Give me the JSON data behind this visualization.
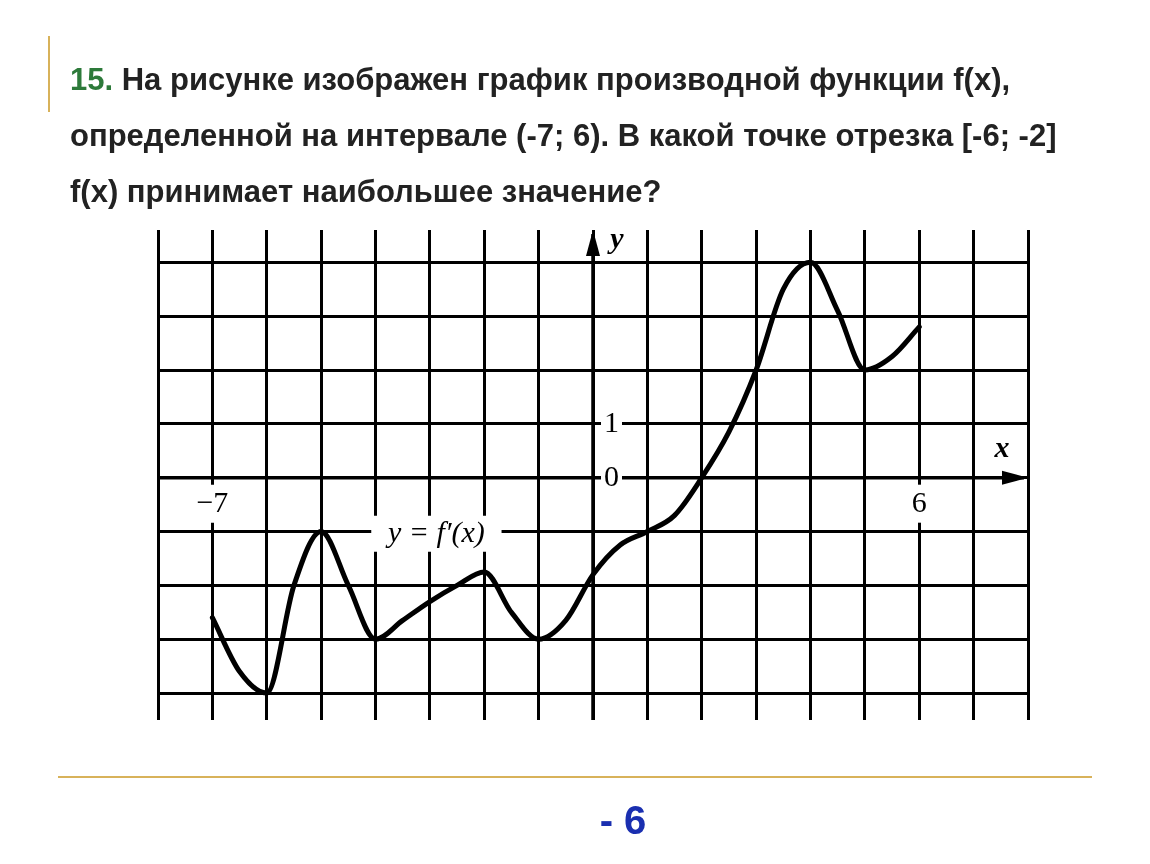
{
  "chart_data": {
    "type": "line",
    "title": "15. На рисунке изображен график производной функции f(x), определенной на интервале (-7; 6). В какой точке отрезка [-6; -2] f(x) принимает наибольшее значение?",
    "xlabel": "x",
    "ylabel": "y",
    "x": [
      -7,
      -6.5,
      -6,
      -5.5,
      -5,
      -4.5,
      -4,
      -3.5,
      -3,
      -2.5,
      -2,
      -1.5,
      -1,
      -0.5,
      0,
      0.5,
      1,
      1.5,
      2,
      2.5,
      3,
      3.5,
      4,
      4.5,
      5,
      5.5,
      6
    ],
    "series": [
      {
        "color": "#000000",
        "values": [
          -2.6,
          -3.6,
          -4,
          -2,
          -1,
          -2,
          -3,
          -2.65,
          -2.3,
          -2,
          -1.75,
          -2.5,
          -3,
          -2.65,
          -1.8,
          -1.25,
          -1,
          -0.7,
          0,
          0.85,
          2,
          3.5,
          4,
          3.1,
          2,
          2.25,
          2.8
        ]
      }
    ],
    "xlim": [
      -8,
      8
    ],
    "ylim": [
      -4.5,
      4.6
    ],
    "xticks": [
      {
        "value": -8,
        "label": null
      },
      {
        "value": -7,
        "label": "−7"
      },
      {
        "value": -6,
        "label": null
      },
      {
        "value": -5,
        "label": null
      },
      {
        "value": -4,
        "label": null
      },
      {
        "value": -3,
        "label": null
      },
      {
        "value": -2,
        "label": null
      },
      {
        "value": -1,
        "label": null
      },
      {
        "value": 0,
        "label": null
      },
      {
        "value": 1,
        "label": null
      },
      {
        "value": 2,
        "label": null
      },
      {
        "value": 3,
        "label": null
      },
      {
        "value": 4,
        "label": null
      },
      {
        "value": 5,
        "label": null
      },
      6,
      {
        "value": 7,
        "label": null
      },
      {
        "value": 8,
        "label": null
      }
    ],
    "yticks": [
      {
        "value": -4,
        "label": null
      },
      {
        "value": -3,
        "label": null
      },
      {
        "value": -2,
        "label": null
      },
      {
        "value": -1,
        "label": null
      },
      0,
      1,
      {
        "value": 2,
        "label": null
      },
      {
        "value": 3,
        "label": null
      },
      {
        "value": 4,
        "label": null
      }
    ],
    "grid": true,
    "line_style": "solid",
    "marker": "none",
    "legend": false,
    "annotations": [
      "y = f′(x)",
      "- 6"
    ]
  }
}
